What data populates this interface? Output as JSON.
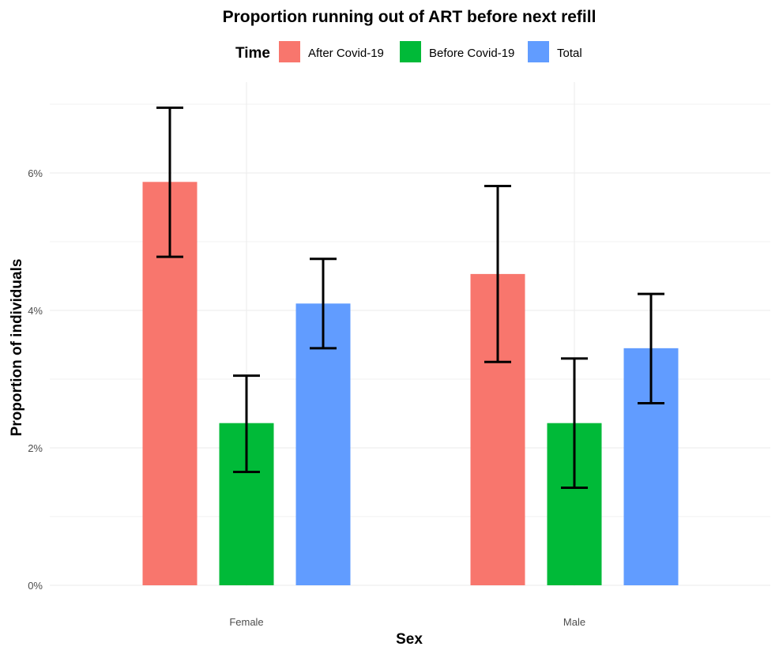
{
  "chart_data": {
    "type": "bar",
    "title": "Proportion running out of ART before next refill",
    "xlabel": "Sex",
    "ylabel": "Proportion of individuals",
    "categories": [
      "Female",
      "Male"
    ],
    "legend": {
      "title": "Time",
      "position": "top"
    },
    "series": [
      {
        "name": "After Covid-19",
        "color": "#F8766D",
        "values": [
          5.87,
          4.53
        ],
        "lower": [
          4.78,
          3.25
        ],
        "upper": [
          6.95,
          5.81
        ]
      },
      {
        "name": "Before Covid-19",
        "color": "#00BA38",
        "values": [
          2.36,
          2.36
        ],
        "lower": [
          1.65,
          1.42
        ],
        "upper": [
          3.05,
          3.3
        ]
      },
      {
        "name": "Total",
        "color": "#619CFF",
        "values": [
          4.1,
          3.45
        ],
        "lower": [
          3.45,
          2.65
        ],
        "upper": [
          4.75,
          4.24
        ]
      }
    ],
    "ylim": [
      0,
      7.3
    ],
    "yticks": [
      0,
      2,
      4,
      6
    ],
    "ytick_labels": [
      "0%",
      "2%",
      "4%",
      "6%"
    ],
    "grid": true
  }
}
